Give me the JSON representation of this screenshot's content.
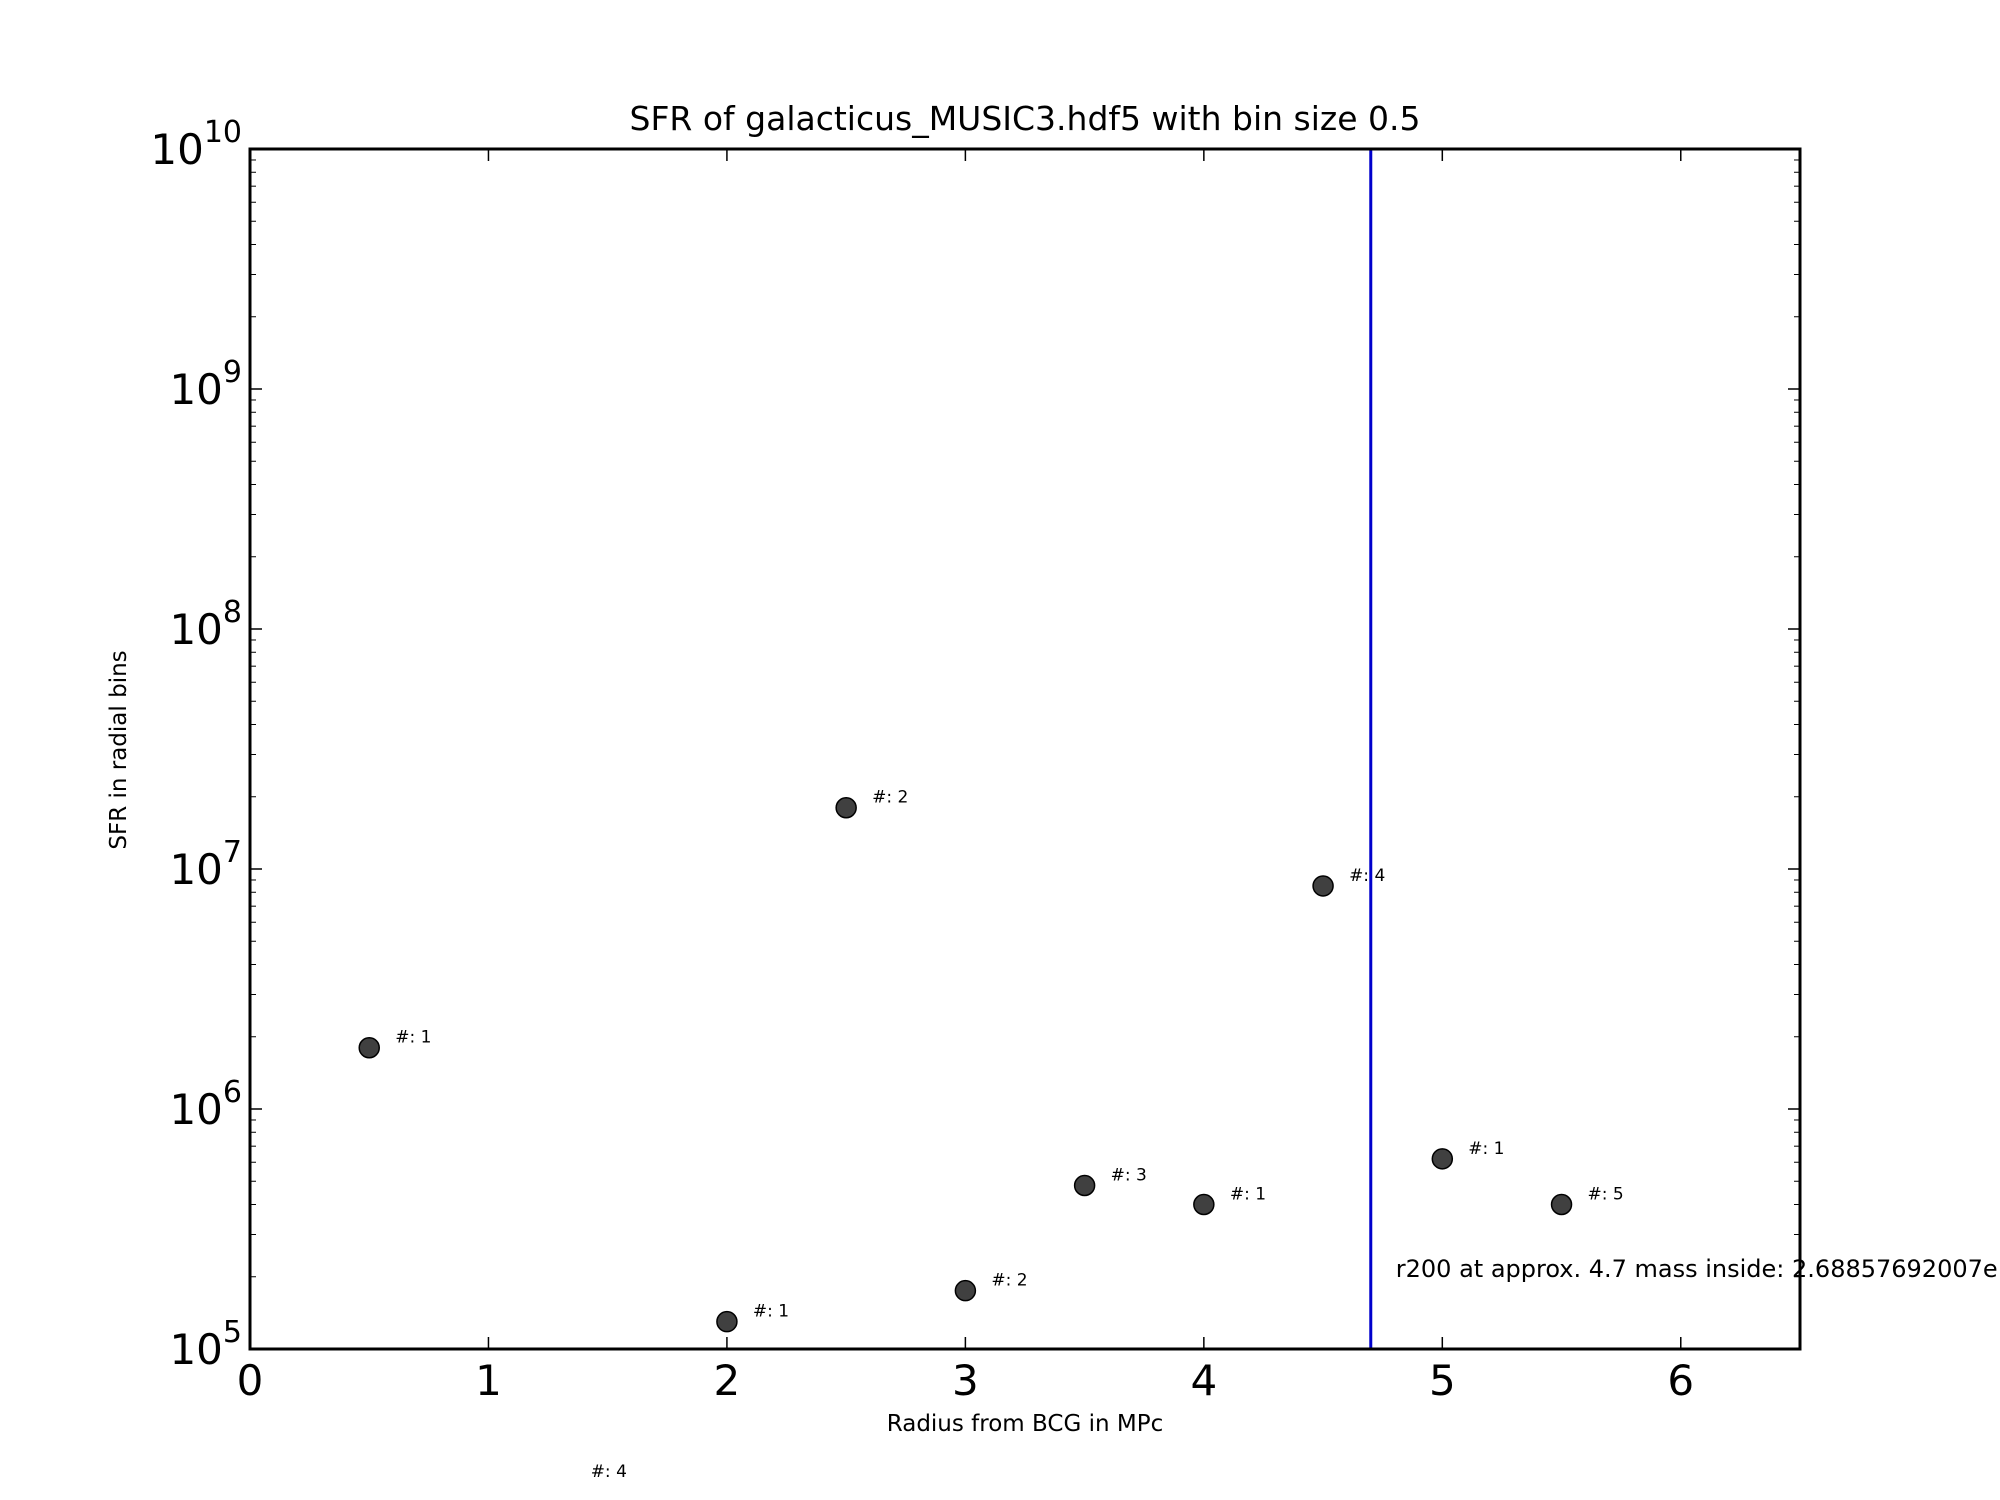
{
  "chart_data": {
    "type": "scatter",
    "title": "SFR of galacticus_MUSIC3.hdf5 with bin size 0.5",
    "xlabel": "Radius from BCG in MPc",
    "ylabel": "SFR in radial bins",
    "xlim": [
      0,
      6.5
    ],
    "ylim": [
      100000,
      10000000000
    ],
    "yscale": "log",
    "grid": false,
    "x_ticks": [
      0,
      1,
      2,
      3,
      4,
      5,
      6
    ],
    "y_ticks": [
      {
        "value": 100000,
        "base": "10",
        "exp": "5"
      },
      {
        "value": 1000000,
        "base": "10",
        "exp": "6"
      },
      {
        "value": 10000000,
        "base": "10",
        "exp": "7"
      },
      {
        "value": 100000000,
        "base": "10",
        "exp": "8"
      },
      {
        "value": 1000000000,
        "base": "10",
        "exp": "9"
      },
      {
        "value": 10000000000,
        "base": "10",
        "exp": "10"
      }
    ],
    "points": [
      {
        "x": 0.5,
        "y": 1800000,
        "label": "#: 1"
      },
      {
        "x": 2.0,
        "y": 130000,
        "label": "#: 1"
      },
      {
        "x": 2.5,
        "y": 18000000,
        "label": "#: 2"
      },
      {
        "x": 3.0,
        "y": 175000,
        "label": "#: 2"
      },
      {
        "x": 3.5,
        "y": 480000,
        "label": "#: 3"
      },
      {
        "x": 4.0,
        "y": 400000,
        "label": "#: 1"
      },
      {
        "x": 4.5,
        "y": 8500000,
        "label": "#: 4"
      },
      {
        "x": 5.0,
        "y": 620000,
        "label": "#: 1"
      },
      {
        "x": 5.5,
        "y": 400000,
        "label": "#: 5"
      }
    ],
    "offscale_label": {
      "x": 1.5,
      "label": "#: 4"
    },
    "vline": {
      "x": 4.7,
      "color": "#0000cc",
      "annotation": "r200 at approx. 4.7 mass inside: 2.68857692007e"
    },
    "marker_color": "#404040"
  }
}
